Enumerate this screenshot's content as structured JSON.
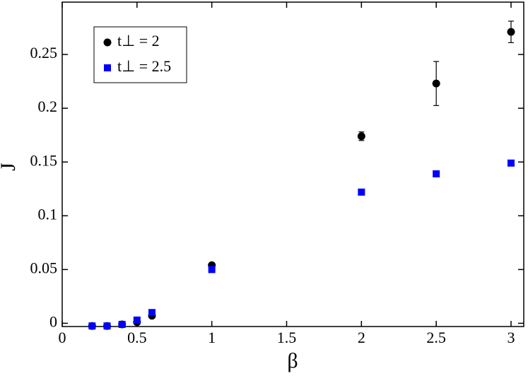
{
  "chart_data": {
    "type": "scatter",
    "x_label": "β",
    "y_label": "J",
    "xlim": [
      0,
      3.085
    ],
    "ylim": [
      -0.003,
      0.2987
    ],
    "xticks": [
      0,
      0.5,
      1,
      1.5,
      2,
      2.5,
      3
    ],
    "yticks": [
      0,
      0.05,
      0.1,
      0.15,
      0.2,
      0.25
    ],
    "legend": "upper left",
    "series": [
      {
        "name": "t⊥ = 2",
        "color": "#000000",
        "marker": "circle",
        "x": [
          0.2,
          0.3,
          0.4,
          0.5,
          0.6,
          1,
          2,
          2.5,
          3
        ],
        "values": [
          -0.0025,
          -0.0025,
          -0.001,
          0.001,
          0.007,
          0.054,
          0.174,
          0.223,
          0.271
        ],
        "errors": [
          null,
          null,
          null,
          null,
          null,
          null,
          0.004,
          0.0205,
          0.01
        ]
      },
      {
        "name": "t⊥ = 2.5",
        "color": "#0000ff",
        "marker": "square",
        "x": [
          0.2,
          0.3,
          0.4,
          0.5,
          0.6,
          1,
          2,
          2.5,
          3
        ],
        "values": [
          -0.0025,
          -0.0025,
          -0.001,
          0.003,
          0.01,
          0.05,
          0.122,
          0.139,
          0.149
        ],
        "errors": [
          null,
          null,
          null,
          null,
          null,
          null,
          null,
          null,
          null
        ]
      }
    ]
  }
}
